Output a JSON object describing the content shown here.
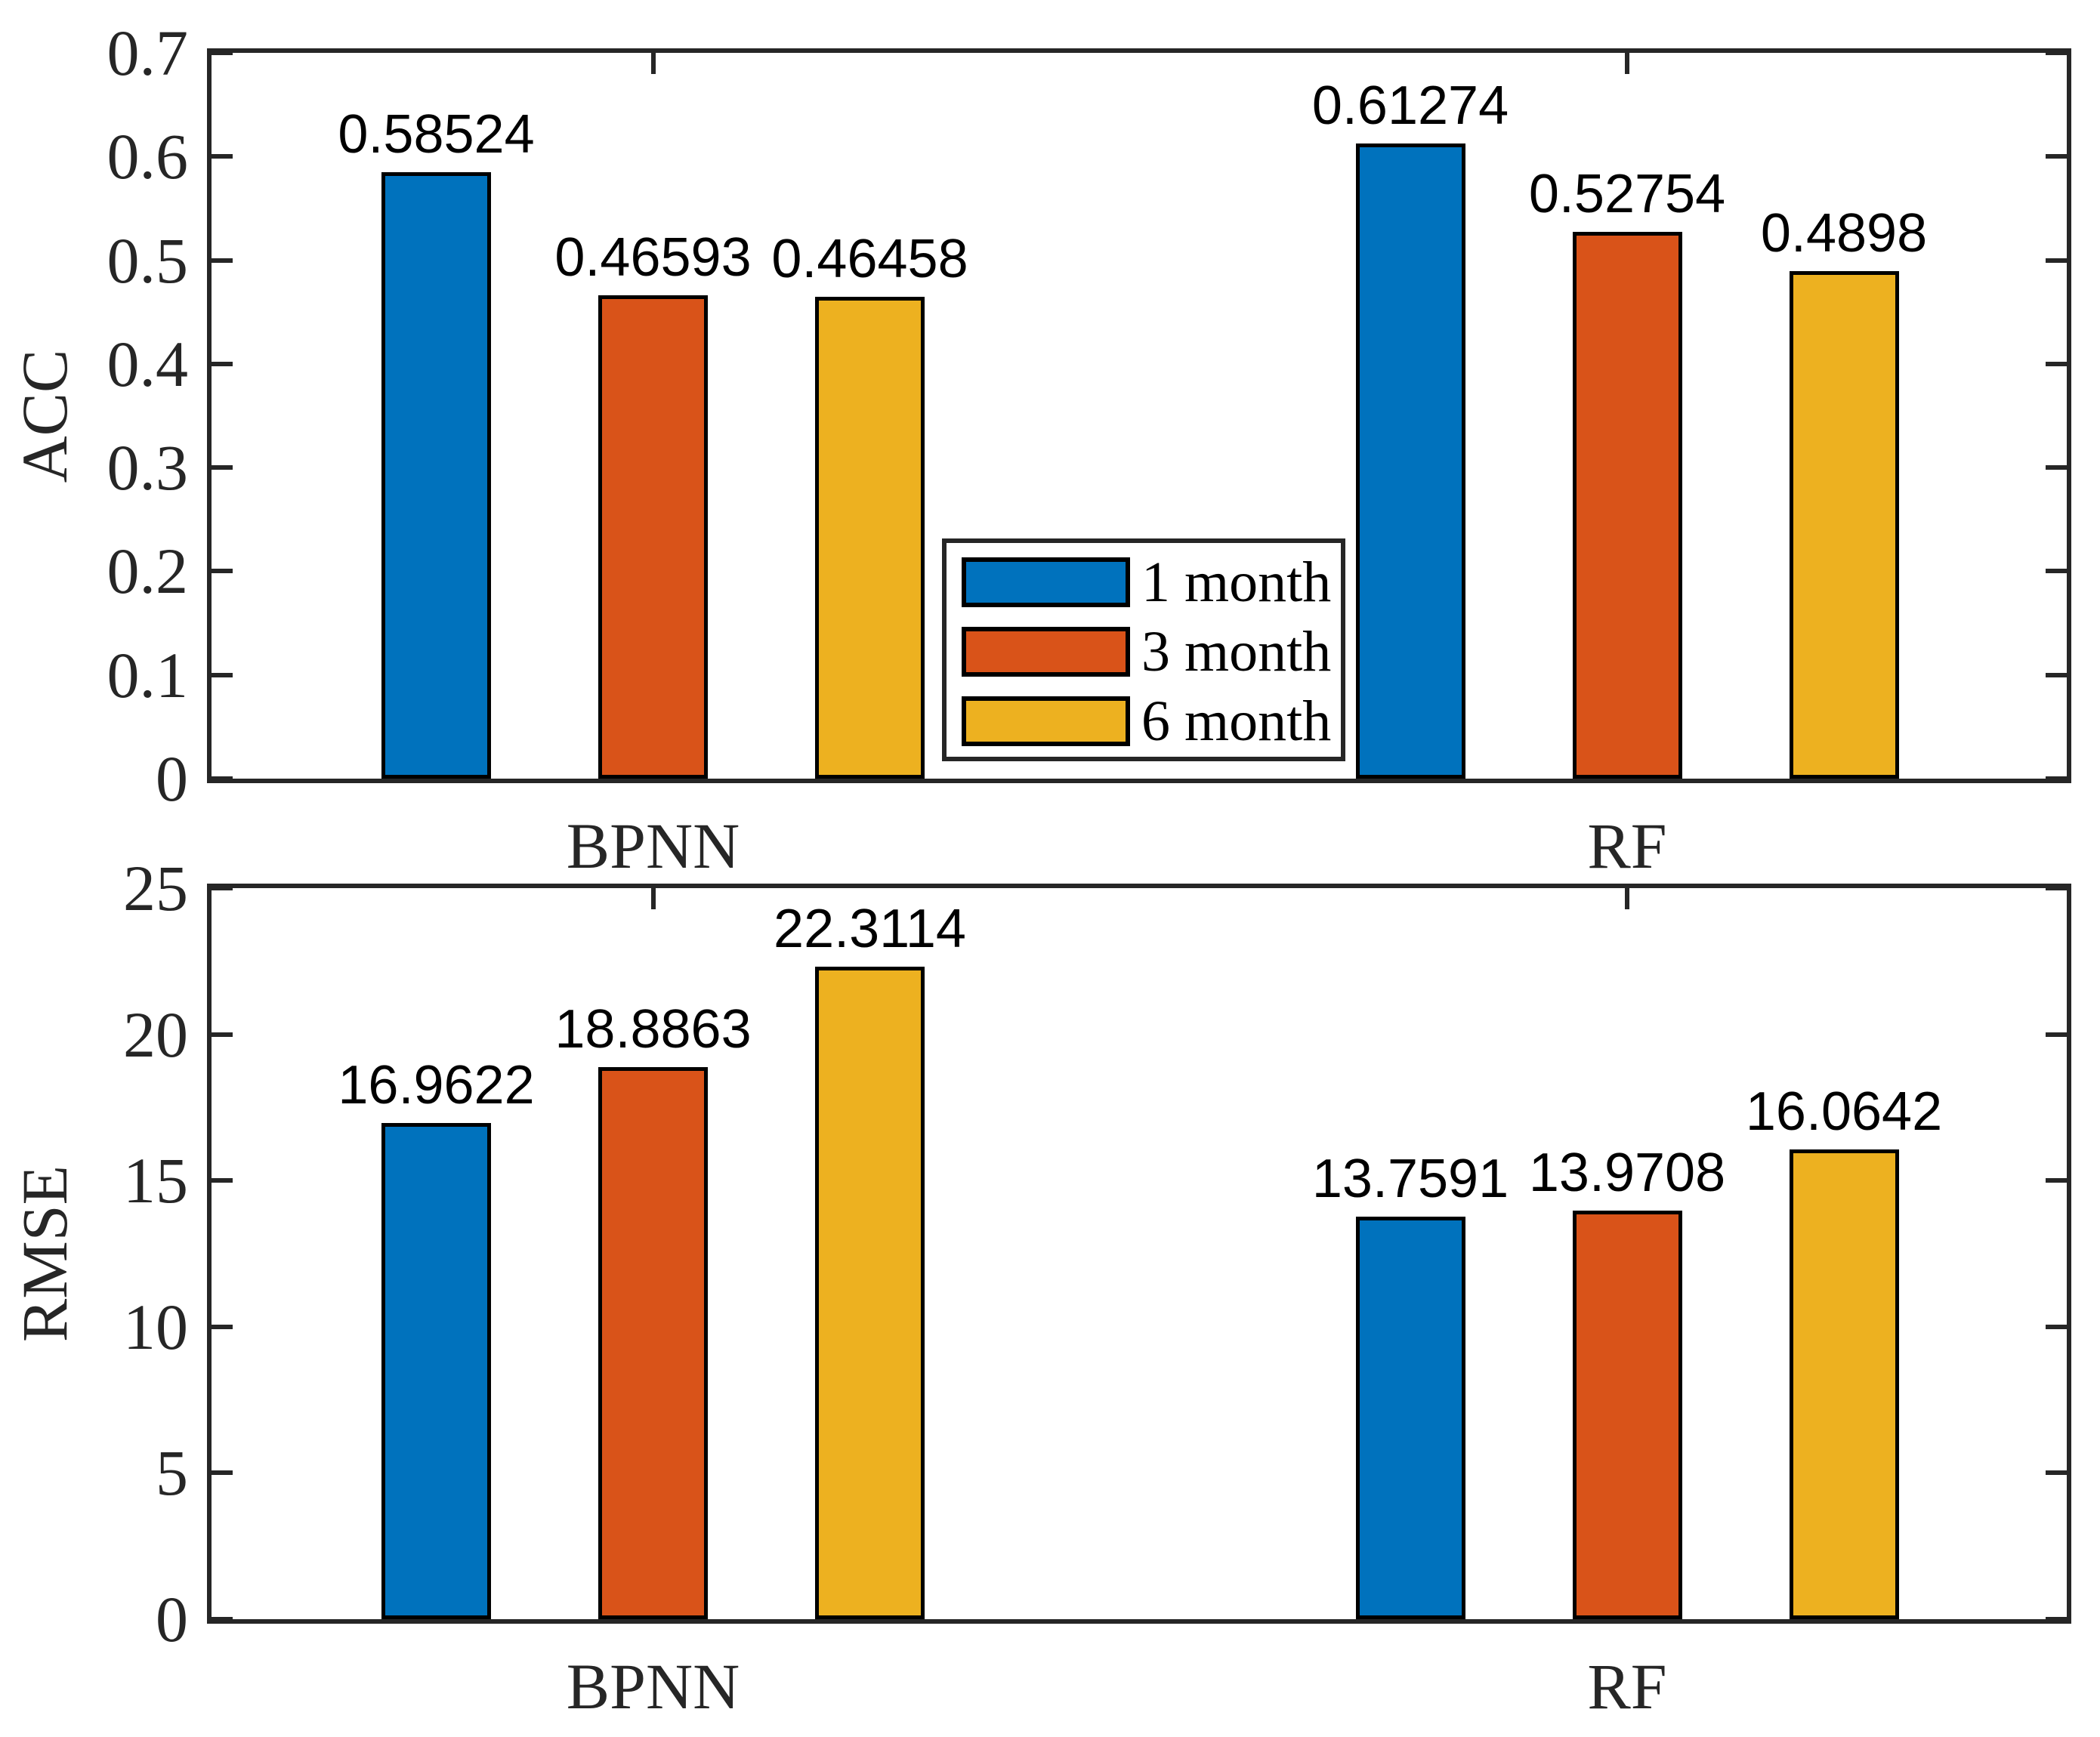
{
  "figure": {
    "background": "#FFFFFF"
  },
  "style": {
    "axis_color": "#262626",
    "bar_edge_color": "#000000",
    "value_label_color": "#000000"
  },
  "legend": {
    "position": "inside-top-plot-bottom-center",
    "items": [
      {
        "label": "1 month",
        "color": "#0072BD"
      },
      {
        "label": "3 month",
        "color": "#D95319"
      },
      {
        "label": "6 month",
        "color": "#EDB120"
      }
    ]
  },
  "chart_data": [
    {
      "type": "bar",
      "title": "",
      "xlabel": "",
      "ylabel": "ACC",
      "grid": false,
      "categories": [
        "BPNN",
        "RF"
      ],
      "ylim": [
        0,
        0.7
      ],
      "ytick_labels": [
        "0",
        "0.1",
        "0.2",
        "0.3",
        "0.4",
        "0.5",
        "0.6",
        "0.7"
      ],
      "series": [
        {
          "name": "1 month",
          "color": "#0072BD",
          "values": [
            0.58524,
            0.61274
          ],
          "labels": [
            "0.58524",
            "0.61274"
          ]
        },
        {
          "name": "3 month",
          "color": "#D95319",
          "values": [
            0.46593,
            0.52754
          ],
          "labels": [
            "0.46593",
            "0.52754"
          ]
        },
        {
          "name": "6 month",
          "color": "#EDB120",
          "values": [
            0.46458,
            0.4898
          ],
          "labels": [
            "0.46458",
            "0.4898"
          ]
        }
      ]
    },
    {
      "type": "bar",
      "title": "",
      "xlabel": "",
      "ylabel": "RMSE",
      "grid": false,
      "categories": [
        "BPNN",
        "RF"
      ],
      "ylim": [
        0,
        25
      ],
      "ytick_labels": [
        "0",
        "5",
        "10",
        "15",
        "20",
        "25"
      ],
      "series": [
        {
          "name": "1 month",
          "color": "#0072BD",
          "values": [
            16.9622,
            13.7591
          ],
          "labels": [
            "16.9622",
            "13.7591"
          ]
        },
        {
          "name": "3 month",
          "color": "#D95319",
          "values": [
            18.8863,
            13.9708
          ],
          "labels": [
            "18.8863",
            "13.9708"
          ]
        },
        {
          "name": "6 month",
          "color": "#EDB120",
          "values": [
            22.3114,
            16.0642
          ],
          "labels": [
            "22.3114",
            "16.0642"
          ]
        }
      ]
    }
  ]
}
